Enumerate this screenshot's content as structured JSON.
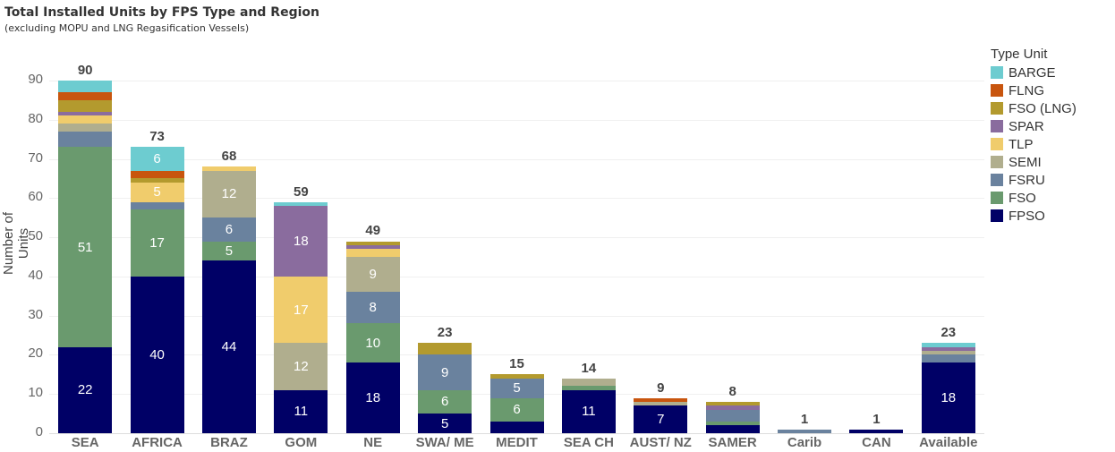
{
  "title": "Total Installed Units by FPS Type and Region",
  "subtitle": "(excluding MOPU and LNG Regasification Vessels)",
  "legend": {
    "title": "Type Unit",
    "items": [
      {
        "label": "BARGE",
        "color": "#6DCCD0"
      },
      {
        "label": "FLNG",
        "color": "#C8550E"
      },
      {
        "label": "FSO (LNG)",
        "color": "#B39A2E"
      },
      {
        "label": "SPAR",
        "color": "#8A6C9E"
      },
      {
        "label": "TLP",
        "color": "#F0CC6C"
      },
      {
        "label": "SEMI",
        "color": "#B0AE8E"
      },
      {
        "label": "FSRU",
        "color": "#6A829E"
      },
      {
        "label": "FSO",
        "color": "#6A9A6E"
      },
      {
        "label": "FPSO",
        "color": "#000066"
      }
    ]
  },
  "chart_data": {
    "type": "bar",
    "stacked": true,
    "title": "Total Installed Units by FPS Type and Region",
    "subtitle": "(excluding MOPU and LNG Regasification Vessels)",
    "xlabel": "",
    "ylabel": "Number of Units",
    "ylim": [
      0,
      95
    ],
    "yticks": [
      0,
      10,
      20,
      30,
      40,
      50,
      60,
      70,
      80,
      90
    ],
    "legend_position": "right",
    "legend_title": "Type Unit",
    "categories": [
      "SEA",
      "AFRICA",
      "BRAZ",
      "GOM",
      "NE",
      "SWA/ ME",
      "MEDIT",
      "SEA CH",
      "AUST/ NZ",
      "SAMER",
      "Carib",
      "CAN",
      "Available"
    ],
    "totals": [
      90,
      73,
      68,
      59,
      49,
      23,
      15,
      14,
      9,
      8,
      1,
      1,
      23
    ],
    "series": [
      {
        "name": "FPSO",
        "color": "#000066",
        "values": [
          22,
          40,
          44,
          11,
          18,
          5,
          3,
          11,
          7,
          2,
          0,
          1,
          18
        ]
      },
      {
        "name": "FSO",
        "color": "#6A9A6E",
        "values": [
          51,
          17,
          5,
          0,
          10,
          6,
          6,
          1,
          0,
          1,
          0,
          0,
          0
        ]
      },
      {
        "name": "FSRU",
        "color": "#6A829E",
        "values": [
          4,
          2,
          6,
          0,
          8,
          9,
          5,
          0,
          0,
          3,
          1,
          0,
          2
        ]
      },
      {
        "name": "SEMI",
        "color": "#B0AE8E",
        "values": [
          2,
          0,
          12,
          12,
          9,
          0,
          0,
          2,
          1,
          0,
          0,
          0,
          1
        ]
      },
      {
        "name": "TLP",
        "color": "#F0CC6C",
        "values": [
          2,
          5,
          1,
          17,
          2,
          0,
          0,
          0,
          0,
          0,
          0,
          0,
          0
        ]
      },
      {
        "name": "SPAR",
        "color": "#8A6C9E",
        "values": [
          1,
          0,
          0,
          18,
          1,
          0,
          0,
          0,
          0,
          1,
          0,
          0,
          1
        ]
      },
      {
        "name": "FSO (LNG)",
        "color": "#B39A2E",
        "values": [
          3,
          1,
          0,
          0,
          1,
          3,
          1,
          0,
          0,
          1,
          0,
          0,
          0
        ]
      },
      {
        "name": "FLNG",
        "color": "#C8550E",
        "values": [
          2,
          2,
          0,
          0,
          0,
          0,
          0,
          0,
          1,
          0,
          0,
          0,
          0
        ]
      },
      {
        "name": "BARGE",
        "color": "#6DCCD0",
        "values": [
          3,
          6,
          0,
          1,
          0,
          0,
          0,
          0,
          0,
          0,
          0,
          0,
          1
        ]
      }
    ],
    "data_labels_min": 5
  }
}
